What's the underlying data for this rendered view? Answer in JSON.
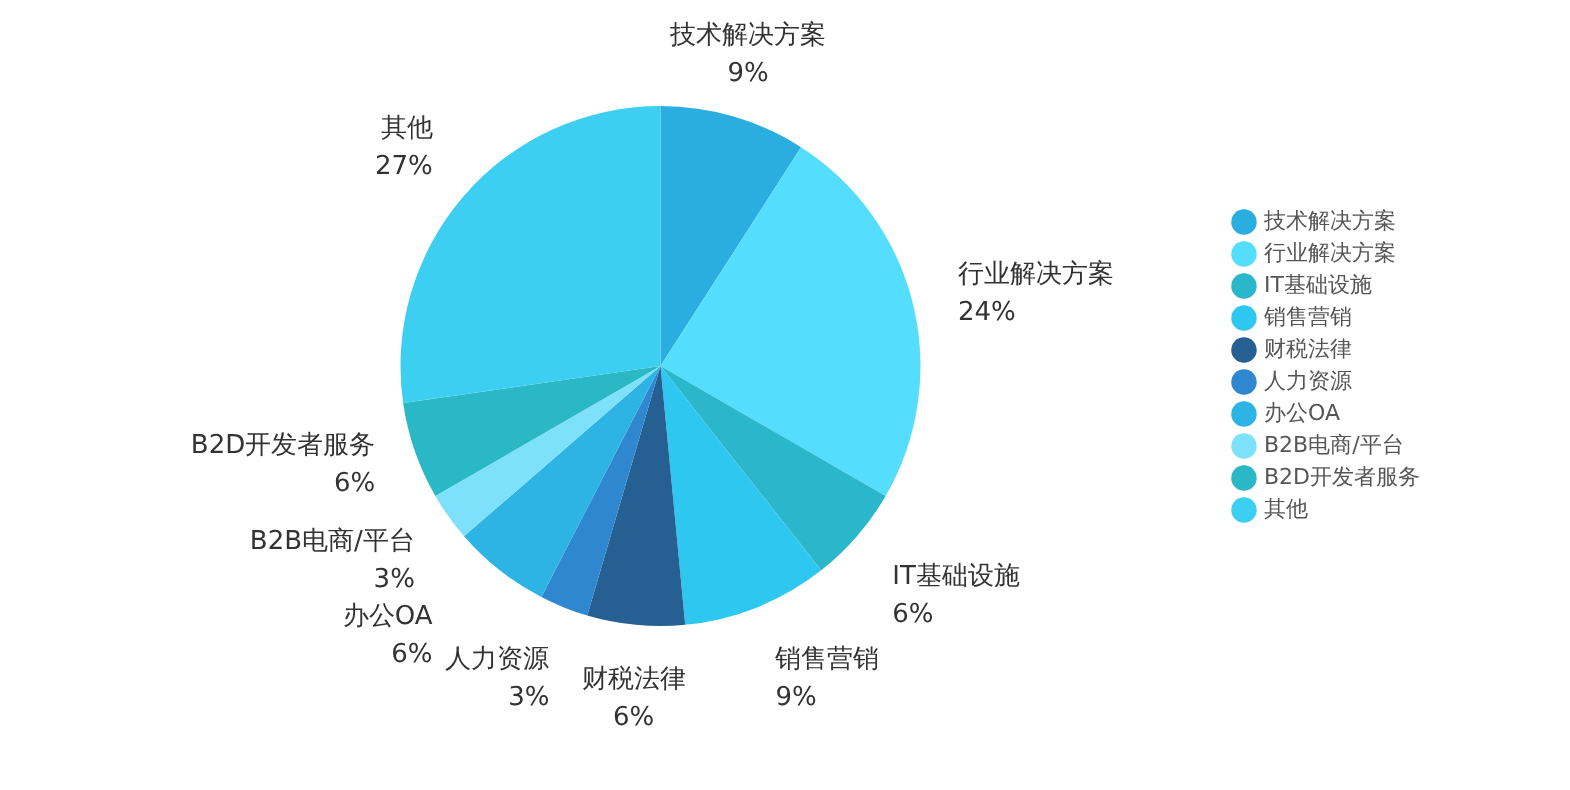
{
  "chart_data": {
    "type": "pie",
    "categories": [
      "技术解决方案",
      "行业解决方案",
      "IT基础设施",
      "销售营销",
      "财税法律",
      "人力资源",
      "办公OA",
      "B2B电商/平台",
      "B2D开发者服务",
      "其他"
    ],
    "values": [
      9,
      24,
      6,
      9,
      6,
      3,
      6,
      3,
      6,
      27
    ],
    "value_labels": [
      "9%",
      "24%",
      "6%",
      "9%",
      "6%",
      "3%",
      "6%",
      "3%",
      "6%",
      "27%"
    ],
    "colors": [
      "#2aaedf",
      "#55ddfd",
      "#2ab7cc",
      "#2ec7ef",
      "#265f92",
      "#2e87cf",
      "#2db3e4",
      "#7de1fc",
      "#2ab8c6",
      "#3ccff2"
    ],
    "legend": "right"
  }
}
